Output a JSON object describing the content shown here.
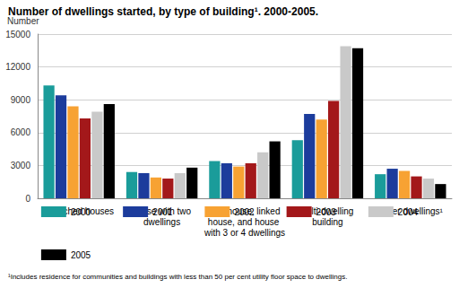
{
  "chart_data": {
    "type": "bar",
    "title": "Number of dwellings started, by type of building¹. 2000-2005.",
    "ylabel": "Number",
    "footnote": "¹Includes residence for communities and buildings with less than 50 per cent utility floor space to dwellings.",
    "categories": [
      "Detached houses",
      "House with two dwellings",
      "Row house, linked house, and house with 3 or 4 dwellings",
      "Multi-dwelling building",
      "Other dwellings¹"
    ],
    "series": [
      {
        "name": "2000",
        "color": "#1a9c9a",
        "values": [
          10300,
          2400,
          3400,
          5300,
          2200
        ]
      },
      {
        "name": "2001",
        "color": "#1c3c9c",
        "values": [
          9400,
          2300,
          3200,
          7700,
          2700
        ]
      },
      {
        "name": "2002",
        "color": "#f7a233",
        "values": [
          8400,
          1900,
          2900,
          7200,
          2500
        ]
      },
      {
        "name": "2003",
        "color": "#a3181a",
        "values": [
          7300,
          1800,
          3200,
          8900,
          2000
        ]
      },
      {
        "name": "2004",
        "color": "#c9c9c9",
        "values": [
          7900,
          2300,
          4200,
          13900,
          1800
        ]
      },
      {
        "name": "2005",
        "color": "#000000",
        "values": [
          8600,
          2800,
          5200,
          13700,
          1300
        ]
      }
    ],
    "ylim": [
      0,
      15000
    ],
    "yticks": [
      0,
      3000,
      6000,
      9000,
      12000,
      15000
    ],
    "grid": true,
    "legend": "bottom"
  }
}
